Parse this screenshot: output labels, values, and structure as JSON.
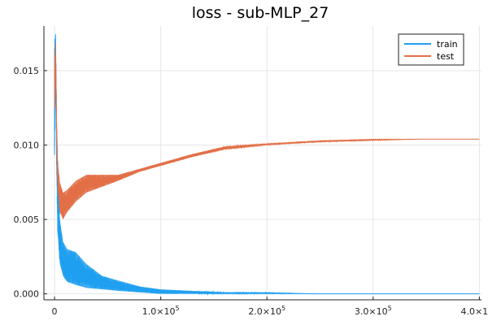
{
  "chart_data": {
    "type": "line",
    "title": "loss - sub-MLP_27",
    "xlabel": "",
    "ylabel": "",
    "xlim": [
      -10000,
      402000
    ],
    "ylim": [
      -0.0004,
      0.018
    ],
    "x_ticks": [
      {
        "value": 0,
        "label": "0"
      },
      {
        "value": 100000,
        "label": "1.0×10^5"
      },
      {
        "value": 200000,
        "label": "2.0×10^5"
      },
      {
        "value": 300000,
        "label": "3.0×10^5"
      },
      {
        "value": 400000,
        "label": "4.0×10^5"
      }
    ],
    "y_ticks": [
      {
        "value": 0.0,
        "label": "0.000"
      },
      {
        "value": 0.005,
        "label": "0.005"
      },
      {
        "value": 0.01,
        "label": "0.010"
      },
      {
        "value": 0.015,
        "label": "0.015"
      }
    ],
    "grid": true,
    "legend_position": "top-right",
    "series": [
      {
        "name": "train",
        "color": "#1f9ff0",
        "x": [
          0,
          1000,
          2000,
          3000,
          5000,
          8000,
          12000,
          20000,
          30000,
          45000,
          60000,
          80000,
          100000,
          130000,
          160000,
          200000,
          250000,
          300000,
          350000,
          400000
        ],
        "y_low": [
          0.009,
          0.014,
          0.008,
          0.004,
          0.002,
          0.0012,
          0.0008,
          0.0006,
          0.0004,
          0.0003,
          0.0002,
          0.0001,
          0.0,
          0.0,
          0.0,
          0.0,
          0.0,
          0.0,
          0.0,
          0.0
        ],
        "y_high": [
          0.017,
          0.0175,
          0.012,
          0.008,
          0.005,
          0.0035,
          0.003,
          0.0028,
          0.002,
          0.0012,
          0.0009,
          0.0005,
          0.0003,
          0.0002,
          0.0001,
          0.0001,
          0.0,
          0.0,
          0.0,
          0.0
        ]
      },
      {
        "name": "test",
        "color": "#e26f46",
        "x": [
          0,
          1000,
          2000,
          3000,
          5000,
          8000,
          12000,
          20000,
          30000,
          45000,
          60000,
          80000,
          100000,
          130000,
          160000,
          200000,
          250000,
          300000,
          350000,
          400000
        ],
        "y_low": [
          0.012,
          0.016,
          0.01,
          0.007,
          0.0055,
          0.005,
          0.0055,
          0.0062,
          0.0068,
          0.0072,
          0.0076,
          0.0082,
          0.0086,
          0.0092,
          0.0097,
          0.01,
          0.0102,
          0.0103,
          0.0104,
          0.0104
        ],
        "y_high": [
          0.015,
          0.017,
          0.012,
          0.009,
          0.0075,
          0.0068,
          0.007,
          0.0076,
          0.008,
          0.008,
          0.008,
          0.0084,
          0.0088,
          0.0094,
          0.0099,
          0.0101,
          0.0103,
          0.0104,
          0.0104,
          0.0104
        ]
      }
    ]
  },
  "colors": {
    "axis": "#222222",
    "grid": "#e6e6e6",
    "background": "#ffffff"
  }
}
